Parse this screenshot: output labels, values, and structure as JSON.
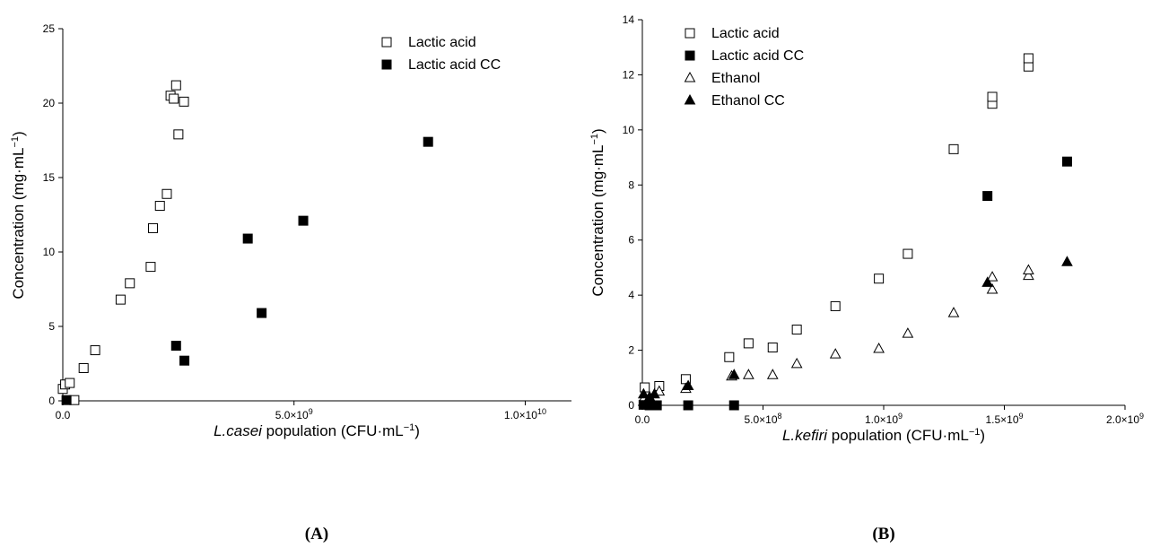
{
  "chart_data": [
    {
      "type": "scatter",
      "panel_label": "(A)",
      "xlabel_italic": "L.casei",
      "xlabel_rest": " population (CFU·mL",
      "xlabel_sup": "−1",
      "xlabel_end": ")",
      "ylabel_main": "Concentration (mg·mL",
      "ylabel_sup": "−1",
      "ylabel_end": ")",
      "xlim": [
        0,
        11000000000
      ],
      "ylim": [
        0,
        25
      ],
      "xtick_labels": [
        "0.0",
        "5.0×10",
        "1.0×10"
      ],
      "xtick_values": [
        0,
        5000000000,
        10000000000
      ],
      "xtick_exponents": [
        "",
        "9",
        "10"
      ],
      "ytick_labels": [
        "0",
        "5",
        "10",
        "15",
        "20",
        "25"
      ],
      "ytick_values": [
        0,
        5,
        10,
        15,
        20,
        25
      ],
      "legend_position": "top-right",
      "series": [
        {
          "name": "Lactic acid",
          "marker": "open-square",
          "points": [
            [
              0,
              0.8
            ],
            [
              50000000,
              1.1
            ],
            [
              150000000,
              1.2
            ],
            [
              250000000,
              0.05
            ],
            [
              450000000,
              2.2
            ],
            [
              700000000,
              3.4
            ],
            [
              1250000000,
              6.8
            ],
            [
              1450000000,
              7.9
            ],
            [
              1900000000,
              9.0
            ],
            [
              1950000000,
              11.6
            ],
            [
              2100000000,
              13.1
            ],
            [
              2250000000,
              13.9
            ],
            [
              2330000000,
              20.5
            ],
            [
              2400000000,
              20.3
            ],
            [
              2450000000,
              21.2
            ],
            [
              2500000000,
              17.9
            ],
            [
              2620000000,
              20.1
            ]
          ]
        },
        {
          "name": "Lactic acid CC",
          "marker": "filled-square",
          "points": [
            [
              80000000,
              0.05
            ],
            [
              2450000000,
              3.7
            ],
            [
              2630000000,
              2.7
            ],
            [
              4000000000,
              10.9
            ],
            [
              4300000000,
              5.9
            ],
            [
              5200000000,
              12.1
            ],
            [
              7900000000,
              17.4
            ]
          ]
        }
      ]
    },
    {
      "type": "scatter",
      "panel_label": "(B)",
      "xlabel_italic": "L.kefiri",
      "xlabel_rest": " population (CFU·mL",
      "xlabel_sup": "−1",
      "xlabel_end": ")",
      "ylabel_main": "Concentration (mg·mL",
      "ylabel_sup": "−1",
      "ylabel_end": ")",
      "xlim": [
        0,
        2000000000
      ],
      "ylim": [
        0,
        14
      ],
      "xtick_labels": [
        "0.0",
        "5.0×10",
        "1.0×10",
        "1.5×10",
        "2.0×10"
      ],
      "xtick_values": [
        0,
        500000000,
        1000000000,
        1500000000,
        2000000000
      ],
      "xtick_exponents": [
        "",
        "8",
        "9",
        "9",
        "9"
      ],
      "ytick_labels": [
        "0",
        "2",
        "4",
        "6",
        "8",
        "10",
        "12",
        "14"
      ],
      "ytick_values": [
        0,
        2,
        4,
        6,
        8,
        10,
        12,
        14
      ],
      "legend_position": "top-left",
      "series": [
        {
          "name": "Lactic acid",
          "marker": "open-square",
          "points": [
            [
              10000000,
              0.65
            ],
            [
              70000000,
              0.7
            ],
            [
              180000000,
              0.95
            ],
            [
              360000000,
              1.75
            ],
            [
              440000000,
              2.25
            ],
            [
              540000000,
              2.1
            ],
            [
              640000000,
              2.75
            ],
            [
              800000000,
              3.6
            ],
            [
              980000000,
              4.6
            ],
            [
              1100000000,
              5.5
            ],
            [
              1290000000,
              9.3
            ],
            [
              1450000000,
              10.95
            ],
            [
              1450000000,
              11.2
            ],
            [
              1600000000,
              12.3
            ],
            [
              1600000000,
              12.6
            ]
          ]
        },
        {
          "name": "Lactic acid CC",
          "marker": "filled-square",
          "points": [
            [
              5000000,
              0.02
            ],
            [
              30000000,
              0.0
            ],
            [
              60000000,
              0.0
            ],
            [
              190000000,
              0.0
            ],
            [
              380000000,
              0.0
            ],
            [
              1430000000,
              7.6
            ],
            [
              1760000000,
              8.85
            ]
          ]
        },
        {
          "name": "Ethanol",
          "marker": "open-triangle",
          "points": [
            [
              10000000,
              0.3
            ],
            [
              70000000,
              0.5
            ],
            [
              180000000,
              0.6
            ],
            [
              370000000,
              1.05
            ],
            [
              440000000,
              1.1
            ],
            [
              540000000,
              1.1
            ],
            [
              640000000,
              1.5
            ],
            [
              800000000,
              1.85
            ],
            [
              980000000,
              2.05
            ],
            [
              1100000000,
              2.6
            ],
            [
              1290000000,
              3.35
            ],
            [
              1450000000,
              4.2
            ],
            [
              1450000000,
              4.65
            ],
            [
              1600000000,
              4.7
            ],
            [
              1600000000,
              4.9
            ]
          ]
        },
        {
          "name": "Ethanol CC",
          "marker": "filled-triangle",
          "points": [
            [
              5000000,
              0.4
            ],
            [
              30000000,
              0.3
            ],
            [
              50000000,
              0.4
            ],
            [
              190000000,
              0.7
            ],
            [
              380000000,
              1.1
            ],
            [
              1430000000,
              4.45
            ],
            [
              1760000000,
              5.2
            ]
          ]
        }
      ]
    }
  ]
}
